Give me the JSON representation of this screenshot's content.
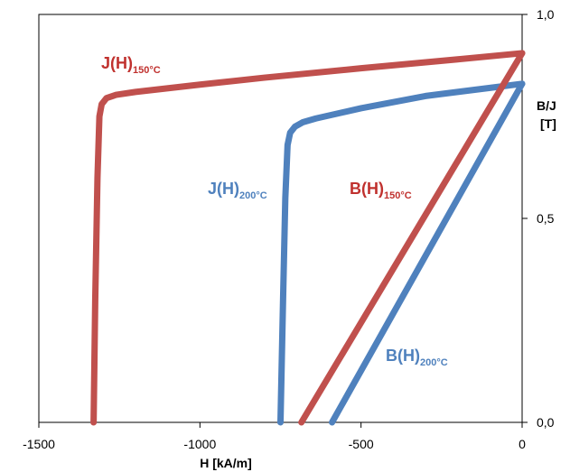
{
  "chart_data": {
    "type": "line",
    "xlabel": "H [kA/m]",
    "ylabel_line1": "B/J",
    "ylabel_line2": "[T]",
    "xlim": [
      -1500,
      0
    ],
    "ylim": [
      0.0,
      1.0
    ],
    "x_ticks": [
      -1500,
      -1000,
      -500,
      0
    ],
    "x_tick_labels": [
      "-1500",
      "-1000",
      "-500",
      "0"
    ],
    "y_ticks": [
      0.0,
      0.5,
      1.0
    ],
    "y_tick_labels": [
      "0,0",
      "0,5",
      "1,0"
    ],
    "grid": false,
    "colors": {
      "red": "#c0504d",
      "blue": "#4f81bd",
      "red_text": "#c0312e",
      "blue_text": "#4f81bd"
    },
    "series": [
      {
        "name_main": "J(H)",
        "name_sub": "150°C",
        "color": "#c0504d",
        "x": [
          -1330,
          -1325,
          -1318,
          -1312,
          -1305,
          -1290,
          -1260,
          -1200,
          -1000,
          -800,
          -500,
          -200,
          0
        ],
        "y": [
          0.0,
          0.3,
          0.6,
          0.75,
          0.78,
          0.795,
          0.803,
          0.81,
          0.828,
          0.845,
          0.868,
          0.89,
          0.905
        ]
      },
      {
        "name_main": "J(H)",
        "name_sub": "200°C",
        "color": "#4f81bd",
        "x": [
          -750,
          -742,
          -735,
          -728,
          -720,
          -705,
          -680,
          -640,
          -500,
          -300,
          -100,
          0
        ],
        "y": [
          0.0,
          0.3,
          0.55,
          0.68,
          0.71,
          0.725,
          0.736,
          0.745,
          0.77,
          0.8,
          0.82,
          0.83
        ]
      },
      {
        "name_main": "B(H)",
        "name_sub": "150°C",
        "color": "#c0504d",
        "x": [
          -685,
          0
        ],
        "y": [
          0.0,
          0.905
        ]
      },
      {
        "name_main": "B(H)",
        "name_sub": "200°C",
        "color": "#4f81bd",
        "x": [
          -590,
          0
        ],
        "y": [
          0.0,
          0.83
        ]
      }
    ]
  }
}
